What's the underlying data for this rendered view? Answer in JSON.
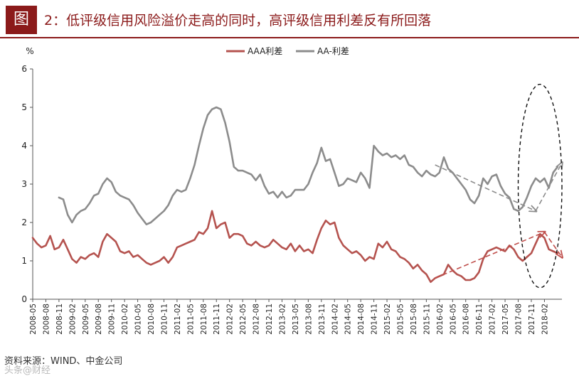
{
  "figure": {
    "label": "图",
    "title": "2：低评级信用风险溢价走高的同时，高评级信用利差反有所回落"
  },
  "source_text": "资料来源：WIND、中金公司",
  "watermark_text": "头条@财经",
  "colors": {
    "aaa": "#b5534f",
    "aa": "#8c8c8c",
    "trend_aaa": "#c0504d",
    "trend_aa": "#8c8c8c",
    "ellipse": "#111111",
    "brand": "#8b1a1a"
  },
  "chart_data": {
    "type": "line",
    "title": "",
    "ylabel": "%",
    "xlabel": "",
    "ylim": [
      0,
      6
    ],
    "yticks": [
      0,
      1,
      2,
      3,
      4,
      5,
      6
    ],
    "xlim": [
      "2008-05",
      "2018-06"
    ],
    "xticks": [
      "2008-05",
      "2008-08",
      "2008-11",
      "2009-02",
      "2009-05",
      "2009-08",
      "2009-11",
      "2010-02",
      "2010-05",
      "2010-08",
      "2010-11",
      "2011-02",
      "2011-05",
      "2011-08",
      "2011-11",
      "2012-02",
      "2012-05",
      "2012-08",
      "2012-11",
      "2013-02",
      "2013-05",
      "2013-08",
      "2013-11",
      "2014-02",
      "2014-05",
      "2014-08",
      "2014-11",
      "2015-02",
      "2015-05",
      "2015-08",
      "2015-11",
      "2016-02",
      "2016-05",
      "2016-08",
      "2016-11",
      "2017-02",
      "2017-05",
      "2017-08",
      "2017-11",
      "2018-02"
    ],
    "legend": {
      "position": "top-center",
      "entries": [
        "AAA利差",
        "AA-利差"
      ]
    },
    "series": [
      {
        "name": "AAA利差",
        "points": [
          [
            "2008-05",
            1.6
          ],
          [
            "2008-06",
            1.45
          ],
          [
            "2008-07",
            1.35
          ],
          [
            "2008-08",
            1.4
          ],
          [
            "2008-09",
            1.65
          ],
          [
            "2008-10",
            1.3
          ],
          [
            "2008-11",
            1.35
          ],
          [
            "2008-12",
            1.55
          ],
          [
            "2009-01",
            1.3
          ],
          [
            "2009-02",
            1.05
          ],
          [
            "2009-03",
            0.95
          ],
          [
            "2009-04",
            1.1
          ],
          [
            "2009-05",
            1.05
          ],
          [
            "2009-06",
            1.15
          ],
          [
            "2009-07",
            1.2
          ],
          [
            "2009-08",
            1.1
          ],
          [
            "2009-09",
            1.5
          ],
          [
            "2009-10",
            1.7
          ],
          [
            "2009-11",
            1.6
          ],
          [
            "2009-12",
            1.5
          ],
          [
            "2010-01",
            1.25
          ],
          [
            "2010-02",
            1.2
          ],
          [
            "2010-03",
            1.25
          ],
          [
            "2010-04",
            1.1
          ],
          [
            "2010-05",
            1.15
          ],
          [
            "2010-06",
            1.05
          ],
          [
            "2010-07",
            0.95
          ],
          [
            "2010-08",
            0.9
          ],
          [
            "2010-09",
            0.95
          ],
          [
            "2010-10",
            1.0
          ],
          [
            "2010-11",
            1.1
          ],
          [
            "2010-12",
            0.95
          ],
          [
            "2011-01",
            1.1
          ],
          [
            "2011-02",
            1.35
          ],
          [
            "2011-03",
            1.4
          ],
          [
            "2011-04",
            1.45
          ],
          [
            "2011-05",
            1.5
          ],
          [
            "2011-06",
            1.55
          ],
          [
            "2011-07",
            1.75
          ],
          [
            "2011-08",
            1.7
          ],
          [
            "2011-09",
            1.85
          ],
          [
            "2011-10",
            2.3
          ],
          [
            "2011-11",
            1.85
          ],
          [
            "2011-12",
            1.95
          ],
          [
            "2012-01",
            2.0
          ],
          [
            "2012-02",
            1.6
          ],
          [
            "2012-03",
            1.7
          ],
          [
            "2012-04",
            1.7
          ],
          [
            "2012-05",
            1.65
          ],
          [
            "2012-06",
            1.45
          ],
          [
            "2012-07",
            1.4
          ],
          [
            "2012-08",
            1.5
          ],
          [
            "2012-09",
            1.4
          ],
          [
            "2012-10",
            1.35
          ],
          [
            "2012-11",
            1.4
          ],
          [
            "2012-12",
            1.55
          ],
          [
            "2013-01",
            1.45
          ],
          [
            "2013-02",
            1.35
          ],
          [
            "2013-03",
            1.3
          ],
          [
            "2013-04",
            1.45
          ],
          [
            "2013-05",
            1.25
          ],
          [
            "2013-06",
            1.4
          ],
          [
            "2013-07",
            1.25
          ],
          [
            "2013-08",
            1.3
          ],
          [
            "2013-09",
            1.2
          ],
          [
            "2013-10",
            1.55
          ],
          [
            "2013-11",
            1.85
          ],
          [
            "2013-12",
            2.05
          ],
          [
            "2014-01",
            1.95
          ],
          [
            "2014-02",
            2.0
          ],
          [
            "2014-03",
            1.6
          ],
          [
            "2014-04",
            1.4
          ],
          [
            "2014-05",
            1.3
          ],
          [
            "2014-06",
            1.2
          ],
          [
            "2014-07",
            1.25
          ],
          [
            "2014-08",
            1.15
          ],
          [
            "2014-09",
            1.0
          ],
          [
            "2014-10",
            1.1
          ],
          [
            "2014-11",
            1.05
          ],
          [
            "2014-12",
            1.45
          ],
          [
            "2015-01",
            1.35
          ],
          [
            "2015-02",
            1.5
          ],
          [
            "2015-03",
            1.3
          ],
          [
            "2015-04",
            1.25
          ],
          [
            "2015-05",
            1.1
          ],
          [
            "2015-06",
            1.05
          ],
          [
            "2015-07",
            0.95
          ],
          [
            "2015-08",
            0.8
          ],
          [
            "2015-09",
            0.9
          ],
          [
            "2015-10",
            0.75
          ],
          [
            "2015-11",
            0.65
          ],
          [
            "2015-12",
            0.45
          ],
          [
            "2016-01",
            0.55
          ],
          [
            "2016-02",
            0.6
          ],
          [
            "2016-03",
            0.65
          ],
          [
            "2016-04",
            0.9
          ],
          [
            "2016-05",
            0.75
          ],
          [
            "2016-06",
            0.65
          ],
          [
            "2016-07",
            0.6
          ],
          [
            "2016-08",
            0.5
          ],
          [
            "2016-09",
            0.5
          ],
          [
            "2016-10",
            0.55
          ],
          [
            "2016-11",
            0.7
          ],
          [
            "2016-12",
            1.05
          ],
          [
            "2017-01",
            1.25
          ],
          [
            "2017-02",
            1.3
          ],
          [
            "2017-03",
            1.35
          ],
          [
            "2017-04",
            1.3
          ],
          [
            "2017-05",
            1.25
          ],
          [
            "2017-06",
            1.4
          ],
          [
            "2017-07",
            1.3
          ],
          [
            "2017-08",
            1.1
          ],
          [
            "2017-09",
            1.0
          ],
          [
            "2017-10",
            1.1
          ],
          [
            "2017-11",
            1.2
          ],
          [
            "2017-12",
            1.45
          ],
          [
            "2018-01",
            1.7
          ],
          [
            "2018-02",
            1.6
          ],
          [
            "2018-03",
            1.3
          ],
          [
            "2018-04",
            1.25
          ],
          [
            "2018-05",
            1.2
          ]
        ]
      },
      {
        "name": "AA-利差",
        "points": [
          [
            "2008-11",
            2.65
          ],
          [
            "2008-12",
            2.6
          ],
          [
            "2009-01",
            2.2
          ],
          [
            "2009-02",
            2.0
          ],
          [
            "2009-03",
            2.2
          ],
          [
            "2009-04",
            2.3
          ],
          [
            "2009-05",
            2.35
          ],
          [
            "2009-06",
            2.5
          ],
          [
            "2009-07",
            2.7
          ],
          [
            "2009-08",
            2.75
          ],
          [
            "2009-09",
            3.0
          ],
          [
            "2009-10",
            3.15
          ],
          [
            "2009-11",
            3.05
          ],
          [
            "2009-12",
            2.8
          ],
          [
            "2010-01",
            2.7
          ],
          [
            "2010-02",
            2.65
          ],
          [
            "2010-03",
            2.6
          ],
          [
            "2010-04",
            2.45
          ],
          [
            "2010-05",
            2.25
          ],
          [
            "2010-06",
            2.1
          ],
          [
            "2010-07",
            1.95
          ],
          [
            "2010-08",
            2.0
          ],
          [
            "2010-09",
            2.1
          ],
          [
            "2010-10",
            2.2
          ],
          [
            "2010-11",
            2.3
          ],
          [
            "2010-12",
            2.45
          ],
          [
            "2011-01",
            2.7
          ],
          [
            "2011-02",
            2.85
          ],
          [
            "2011-03",
            2.8
          ],
          [
            "2011-04",
            2.85
          ],
          [
            "2011-05",
            3.15
          ],
          [
            "2011-06",
            3.5
          ],
          [
            "2011-07",
            4.0
          ],
          [
            "2011-08",
            4.45
          ],
          [
            "2011-09",
            4.8
          ],
          [
            "2011-10",
            4.95
          ],
          [
            "2011-11",
            5.0
          ],
          [
            "2011-12",
            4.95
          ],
          [
            "2012-01",
            4.6
          ],
          [
            "2012-02",
            4.1
          ],
          [
            "2012-03",
            3.45
          ],
          [
            "2012-04",
            3.35
          ],
          [
            "2012-05",
            3.35
          ],
          [
            "2012-06",
            3.3
          ],
          [
            "2012-07",
            3.25
          ],
          [
            "2012-08",
            3.1
          ],
          [
            "2012-09",
            3.25
          ],
          [
            "2012-10",
            2.95
          ],
          [
            "2012-11",
            2.75
          ],
          [
            "2012-12",
            2.8
          ],
          [
            "2013-01",
            2.65
          ],
          [
            "2013-02",
            2.8
          ],
          [
            "2013-03",
            2.65
          ],
          [
            "2013-04",
            2.7
          ],
          [
            "2013-05",
            2.85
          ],
          [
            "2013-06",
            2.85
          ],
          [
            "2013-07",
            2.85
          ],
          [
            "2013-08",
            3.0
          ],
          [
            "2013-09",
            3.3
          ],
          [
            "2013-10",
            3.55
          ],
          [
            "2013-11",
            3.95
          ],
          [
            "2013-12",
            3.6
          ],
          [
            "2014-01",
            3.65
          ],
          [
            "2014-02",
            3.3
          ],
          [
            "2014-03",
            2.95
          ],
          [
            "2014-04",
            3.0
          ],
          [
            "2014-05",
            3.15
          ],
          [
            "2014-06",
            3.1
          ],
          [
            "2014-07",
            3.05
          ],
          [
            "2014-08",
            3.3
          ],
          [
            "2014-09",
            3.15
          ],
          [
            "2014-10",
            2.9
          ],
          [
            "2014-11",
            4.0
          ],
          [
            "2014-12",
            3.85
          ],
          [
            "2015-01",
            3.75
          ],
          [
            "2015-02",
            3.8
          ],
          [
            "2015-03",
            3.7
          ],
          [
            "2015-04",
            3.75
          ],
          [
            "2015-05",
            3.65
          ],
          [
            "2015-06",
            3.75
          ],
          [
            "2015-07",
            3.5
          ],
          [
            "2015-08",
            3.45
          ],
          [
            "2015-09",
            3.3
          ],
          [
            "2015-10",
            3.2
          ],
          [
            "2015-11",
            3.35
          ],
          [
            "2015-12",
            3.25
          ],
          [
            "2016-01",
            3.2
          ],
          [
            "2016-02",
            3.3
          ],
          [
            "2016-03",
            3.7
          ],
          [
            "2016-04",
            3.4
          ],
          [
            "2016-05",
            3.3
          ],
          [
            "2016-06",
            3.15
          ],
          [
            "2016-07",
            3.0
          ],
          [
            "2016-08",
            2.85
          ],
          [
            "2016-09",
            2.6
          ],
          [
            "2016-10",
            2.5
          ],
          [
            "2016-11",
            2.7
          ],
          [
            "2016-12",
            3.15
          ],
          [
            "2017-01",
            3.0
          ],
          [
            "2017-02",
            3.2
          ],
          [
            "2017-03",
            3.25
          ],
          [
            "2017-04",
            2.95
          ],
          [
            "2017-05",
            2.75
          ],
          [
            "2017-06",
            2.65
          ],
          [
            "2017-07",
            2.35
          ],
          [
            "2017-08",
            2.3
          ],
          [
            "2017-09",
            2.4
          ],
          [
            "2017-10",
            2.65
          ],
          [
            "2017-11",
            2.95
          ],
          [
            "2017-12",
            3.15
          ],
          [
            "2018-01",
            3.05
          ],
          [
            "2018-02",
            3.15
          ],
          [
            "2018-03",
            2.9
          ],
          [
            "2018-04",
            3.3
          ],
          [
            "2018-05",
            3.45
          ]
        ]
      }
    ],
    "annotations": [
      {
        "type": "dashed-arrow",
        "series": "AA-利差",
        "from": [
          "2016-01",
          3.5
        ],
        "to": [
          "2017-12",
          2.3
        ]
      },
      {
        "type": "dashed-arrow",
        "series": "AA-利差",
        "from": [
          "2017-12",
          2.3
        ],
        "to": [
          "2018-06",
          3.55
        ]
      },
      {
        "type": "dashed-arrow",
        "series": "AAA利差",
        "from": [
          "2016-01",
          0.55
        ],
        "to": [
          "2018-02",
          1.75
        ]
      },
      {
        "type": "dashed-arrow",
        "series": "AAA利差",
        "from": [
          "2018-02",
          1.75
        ],
        "to": [
          "2018-06",
          1.1
        ]
      },
      {
        "type": "dashed-ellipse",
        "center": [
          "2018-01",
          2.95
        ],
        "x_radius_months": 5,
        "y_radius": 2.65
      }
    ]
  }
}
